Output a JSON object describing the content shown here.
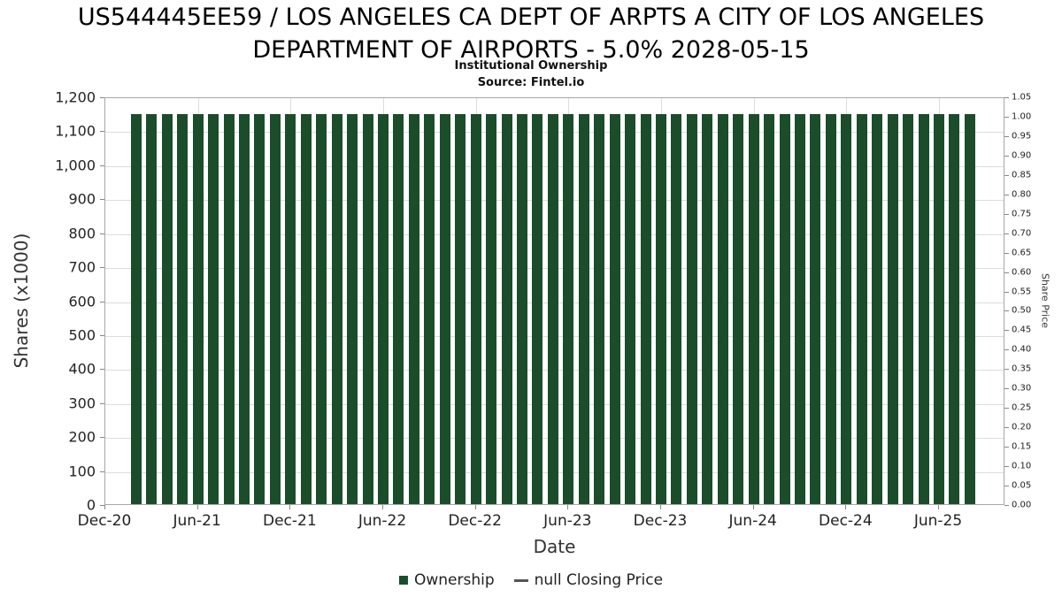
{
  "chart_data": {
    "type": "bar",
    "title": "US544445EE59 / LOS ANGELES CA DEPT OF ARPTS A CITY OF LOS ANGELES DEPARTMENT OF AIRPORTS - 5.0% 2028-05-15",
    "subtitle": "Institutional Ownership",
    "source": "Source: Fintel.io",
    "xlabel": "Date",
    "ylabel_left": "Shares (x1000)",
    "ylabel_right": "Share Price",
    "x_tick_labels": [
      "Dec-20",
      "Jun-21",
      "Dec-21",
      "Jun-22",
      "Dec-22",
      "Jun-23",
      "Dec-23",
      "Jun-24",
      "Dec-24",
      "Jun-25"
    ],
    "x_months_per_tick": 6,
    "left_axis": {
      "min": 0,
      "max": 1200,
      "step": 100
    },
    "right_axis": {
      "min": 0,
      "max": 1.05,
      "step": 0.05
    },
    "grid": true,
    "legend_position": "bottom",
    "series": [
      {
        "name": "Ownership",
        "type": "bar",
        "color": "#1b4d2b",
        "start_month_offset": 2,
        "values": [
          1148,
          1148,
          1148,
          1148,
          1148,
          1148,
          1148,
          1148,
          1148,
          1148,
          1148,
          1148,
          1148,
          1148,
          1148,
          1148,
          1148,
          1148,
          1148,
          1148,
          1148,
          1148,
          1148,
          1148,
          1148,
          1148,
          1148,
          1148,
          1148,
          1148,
          1148,
          1148,
          1148,
          1148,
          1148,
          1148,
          1148,
          1148,
          1148,
          1148,
          1148,
          1148,
          1148,
          1148,
          1148,
          1148,
          1148,
          1148,
          1148,
          1148,
          1148,
          1148,
          1148,
          1148,
          1148
        ]
      },
      {
        "name": "null Closing Price",
        "type": "line",
        "color": "#555555",
        "values": []
      }
    ],
    "legend": [
      {
        "label": "Ownership",
        "marker": "square",
        "color": "#1b4d2b"
      },
      {
        "label": "null Closing Price",
        "marker": "line",
        "color": "#555555"
      }
    ]
  }
}
